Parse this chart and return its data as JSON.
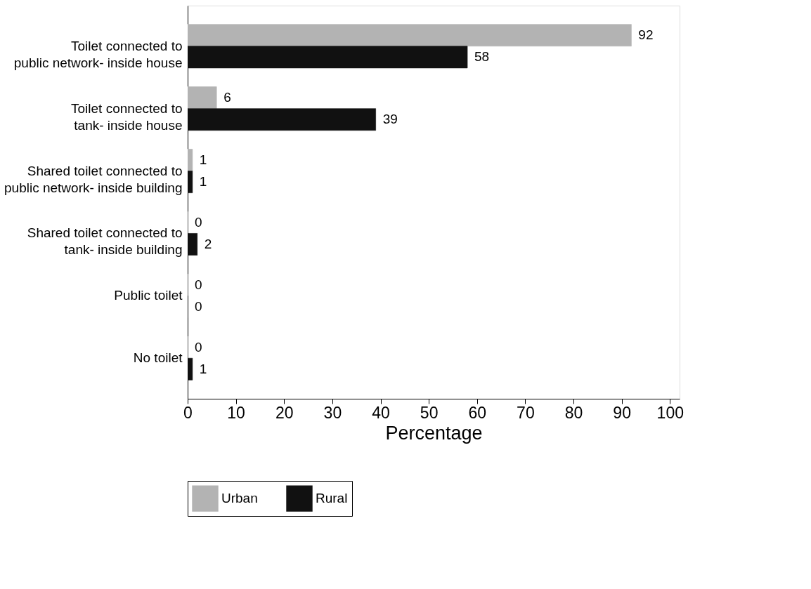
{
  "chart_data": {
    "type": "bar",
    "orientation": "horizontal",
    "xlabel": "Percentage",
    "categories": [
      "Toilet connected to\npublic network- inside house",
      "Toilet connected to\ntank- inside house",
      "Shared toilet connected to\npublic network- inside building",
      "Shared toilet connected to\ntank- inside building",
      "Public toilet",
      "No toilet"
    ],
    "series": [
      {
        "name": "Urban",
        "color": "#b3b3b3",
        "values": [
          92,
          6,
          1,
          0,
          0,
          0
        ]
      },
      {
        "name": "Rural",
        "color": "#111111",
        "values": [
          58,
          39,
          1,
          2,
          0,
          1
        ]
      }
    ],
    "xlim": [
      0,
      102
    ],
    "xticks": [
      0,
      10,
      20,
      30,
      40,
      50,
      60,
      70,
      80,
      90,
      100
    ],
    "data_labels": true,
    "grid": false,
    "legend": "bottom"
  }
}
